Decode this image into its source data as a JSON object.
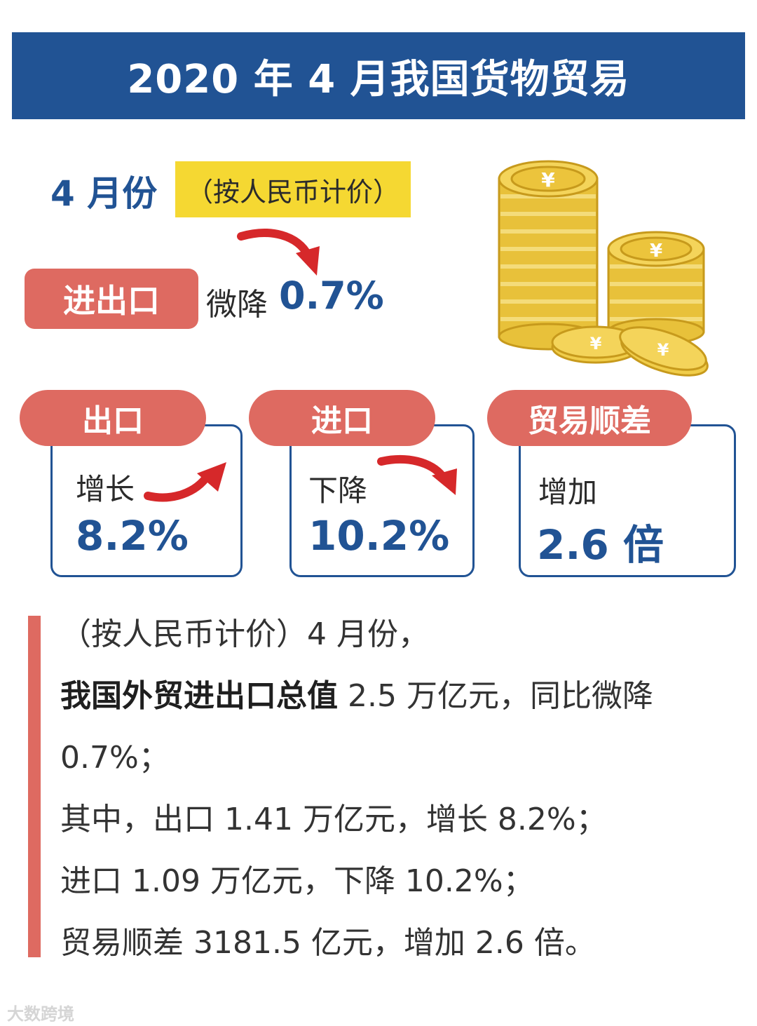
{
  "banner": {
    "title": "2020 年 4 月我国货物贸易"
  },
  "period": {
    "month": "4 月份",
    "pricing_note": "（按人民币计价）"
  },
  "total": {
    "label": "进出口",
    "verb": "微降",
    "value": "0.7%"
  },
  "cards": [
    {
      "label": "出口",
      "verb": "增长",
      "value": "8.2%"
    },
    {
      "label": "进口",
      "verb": "下降",
      "value": "10.2%"
    },
    {
      "label": "贸易顺差",
      "verb": "增加",
      "value": "2.6 倍"
    }
  ],
  "summary": {
    "line1": "（按人民币计价）4 月份，",
    "line2_bold": "我国外贸进出口总值",
    "line2_rest": " 2.5 万亿元，同比微降",
    "line3": "0.7%；",
    "line4": "其中，出口 1.41 万亿元，增长 8.2%；",
    "line5": "进口 1.09 万亿元，下降 10.2%；",
    "line6": "贸易顺差 3181.5 亿元，增加 2.6 倍。"
  },
  "watermark": {
    "text": "大数跨境"
  },
  "colors": {
    "navy": "#215394",
    "coral": "#de6a61",
    "yellow": "#f5d832",
    "gold": "#e8c13a",
    "arrow_red": "#d6282a"
  },
  "icons": [
    "coin-stack-icon",
    "arrow-down-icon",
    "arrow-up-icon"
  ]
}
